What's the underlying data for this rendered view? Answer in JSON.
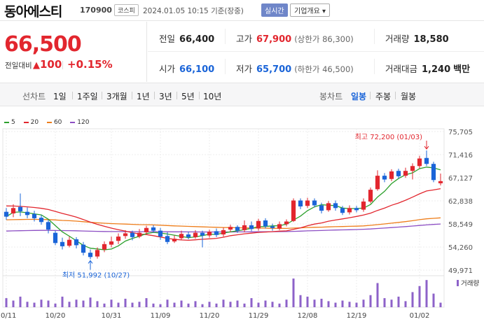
{
  "header": {
    "name": "동아에스티",
    "code": "170900",
    "market": "코스피",
    "time": "2024.01.05 10:15",
    "time_basis": "기준(장중)",
    "live_badge": "실시간",
    "info_label": "기업개요",
    "info_arrow": "▾"
  },
  "price": {
    "current": "66,500",
    "compare_label": "전일대비",
    "direction_symbol": "▲",
    "change": "100",
    "rate": "+0.15%"
  },
  "stats": {
    "prev_label": "전일",
    "prev_value": "66,400",
    "high_label": "고가",
    "high_value": "67,900",
    "upper_limit": "(상한가 86,300)",
    "volume_label": "거래량",
    "volume_value": "18,580",
    "open_label": "시가",
    "open_value": "66,100",
    "low_label": "저가",
    "low_value": "65,700",
    "lower_limit": "(하한가 46,500)",
    "amount_label": "거래대금",
    "amount_value": "1,240",
    "amount_unit": "백만"
  },
  "periods": {
    "label": "선차트",
    "options": [
      "1일",
      "1주일",
      "3개월",
      "1년",
      "3년",
      "5년",
      "10년"
    ],
    "candle_label": "봉차트",
    "candle_options": [
      "일봉",
      "주봉",
      "월봉"
    ],
    "candle_active": "일봉"
  },
  "chart_data": {
    "type": "candlestick",
    "legend": [
      {
        "name": "5",
        "color": "#2ca02c"
      },
      {
        "name": "20",
        "color": "#e2262e"
      },
      {
        "name": "60",
        "color": "#ee7d1a"
      },
      {
        "name": "120",
        "color": "#8d4fc4"
      }
    ],
    "y_ticks": [
      "75,705",
      "71,416",
      "67,127",
      "62,838",
      "58,549",
      "54,260",
      "49,971"
    ],
    "ylim": [
      49971,
      75705
    ],
    "x_ticks": [
      "10/11",
      "10/20",
      "10/31",
      "11/09",
      "11/20",
      "11/29",
      "12/08",
      "12/19",
      "01/02"
    ],
    "x_tick_index": [
      0,
      7,
      15,
      22,
      29,
      36,
      43,
      50,
      59
    ],
    "high_annotation": "최고 72,200 (01/03)",
    "high_index": 60,
    "high_value": 72200,
    "low_annotation": "최저 51,992 (10/27)",
    "low_index": 12,
    "low_value": 51992,
    "volume_label": "거래량",
    "candles": [
      {
        "o": 60800,
        "c": 59900,
        "h": 61500,
        "l": 59300
      },
      {
        "o": 60500,
        "c": 61500,
        "h": 62200,
        "l": 59800
      },
      {
        "o": 61700,
        "c": 60900,
        "h": 64200,
        "l": 60000
      },
      {
        "o": 60800,
        "c": 60200,
        "h": 61600,
        "l": 59600
      },
      {
        "o": 60400,
        "c": 59600,
        "h": 61000,
        "l": 59000
      },
      {
        "o": 59700,
        "c": 58900,
        "h": 60200,
        "l": 58400
      },
      {
        "o": 58900,
        "c": 57500,
        "h": 59300,
        "l": 56800
      },
      {
        "o": 56900,
        "c": 55000,
        "h": 57300,
        "l": 54600
      },
      {
        "o": 55200,
        "c": 54400,
        "h": 56000,
        "l": 53800
      },
      {
        "o": 54500,
        "c": 55600,
        "h": 56200,
        "l": 54200
      },
      {
        "o": 55700,
        "c": 54600,
        "h": 56100,
        "l": 54000
      },
      {
        "o": 54700,
        "c": 53200,
        "h": 55200,
        "l": 52700
      },
      {
        "o": 53200,
        "c": 52400,
        "h": 53800,
        "l": 51992
      },
      {
        "o": 52500,
        "c": 53700,
        "h": 54200,
        "l": 52100
      },
      {
        "o": 53800,
        "c": 54800,
        "h": 55300,
        "l": 53300
      },
      {
        "o": 54700,
        "c": 55300,
        "h": 56200,
        "l": 54200
      },
      {
        "o": 55400,
        "c": 56200,
        "h": 56800,
        "l": 54800
      },
      {
        "o": 56300,
        "c": 56800,
        "h": 57400,
        "l": 55800
      },
      {
        "o": 56900,
        "c": 56100,
        "h": 57300,
        "l": 55500
      },
      {
        "o": 56200,
        "c": 56900,
        "h": 57600,
        "l": 55900
      },
      {
        "o": 57000,
        "c": 57800,
        "h": 58200,
        "l": 56600
      },
      {
        "o": 57900,
        "c": 57300,
        "h": 58300,
        "l": 56900
      },
      {
        "o": 57300,
        "c": 56200,
        "h": 57800,
        "l": 55600
      },
      {
        "o": 56300,
        "c": 55200,
        "h": 57000,
        "l": 54800
      },
      {
        "o": 55300,
        "c": 55800,
        "h": 56400,
        "l": 55000
      },
      {
        "o": 55900,
        "c": 56700,
        "h": 57300,
        "l": 55500
      },
      {
        "o": 56600,
        "c": 56100,
        "h": 57100,
        "l": 55700
      },
      {
        "o": 56100,
        "c": 56900,
        "h": 57400,
        "l": 55800
      },
      {
        "o": 56900,
        "c": 56400,
        "h": 57300,
        "l": 54200
      },
      {
        "o": 56400,
        "c": 57100,
        "h": 57500,
        "l": 56000
      },
      {
        "o": 57200,
        "c": 56500,
        "h": 57700,
        "l": 56100
      },
      {
        "o": 56600,
        "c": 57400,
        "h": 57900,
        "l": 56200
      },
      {
        "o": 57500,
        "c": 58000,
        "h": 58400,
        "l": 57000
      },
      {
        "o": 58000,
        "c": 57300,
        "h": 58300,
        "l": 56900
      },
      {
        "o": 57400,
        "c": 58300,
        "h": 59200,
        "l": 57000
      },
      {
        "o": 58300,
        "c": 57600,
        "h": 59000,
        "l": 57200
      },
      {
        "o": 57700,
        "c": 59100,
        "h": 59500,
        "l": 57300
      },
      {
        "o": 59200,
        "c": 58100,
        "h": 59600,
        "l": 57700
      },
      {
        "o": 58100,
        "c": 57800,
        "h": 58600,
        "l": 57300
      },
      {
        "o": 57700,
        "c": 58500,
        "h": 59000,
        "l": 57400
      },
      {
        "o": 58500,
        "c": 59000,
        "h": 59400,
        "l": 58100
      },
      {
        "o": 59100,
        "c": 62900,
        "h": 63300,
        "l": 58900
      },
      {
        "o": 62900,
        "c": 61800,
        "h": 63300,
        "l": 61300
      },
      {
        "o": 61900,
        "c": 62900,
        "h": 63400,
        "l": 61500
      },
      {
        "o": 62900,
        "c": 62000,
        "h": 63300,
        "l": 61600
      },
      {
        "o": 62000,
        "c": 61000,
        "h": 62500,
        "l": 60500
      },
      {
        "o": 61100,
        "c": 62400,
        "h": 62800,
        "l": 60800
      },
      {
        "o": 62400,
        "c": 61500,
        "h": 62900,
        "l": 61000
      },
      {
        "o": 61500,
        "c": 60600,
        "h": 61900,
        "l": 60200
      },
      {
        "o": 60700,
        "c": 61500,
        "h": 62000,
        "l": 60300
      },
      {
        "o": 61500,
        "c": 61100,
        "h": 61900,
        "l": 60700
      },
      {
        "o": 61200,
        "c": 62700,
        "h": 63300,
        "l": 60800
      },
      {
        "o": 62700,
        "c": 64900,
        "h": 65300,
        "l": 62400
      },
      {
        "o": 65000,
        "c": 67500,
        "h": 68500,
        "l": 64700
      },
      {
        "o": 67500,
        "c": 66800,
        "h": 68000,
        "l": 66300
      },
      {
        "o": 66900,
        "c": 68300,
        "h": 68700,
        "l": 66500
      },
      {
        "o": 68400,
        "c": 67400,
        "h": 68800,
        "l": 67000
      },
      {
        "o": 67500,
        "c": 68400,
        "h": 69000,
        "l": 67100
      },
      {
        "o": 68400,
        "c": 69300,
        "h": 69800,
        "l": 66800
      },
      {
        "o": 69300,
        "c": 70700,
        "h": 71200,
        "l": 68900
      },
      {
        "o": 70800,
        "c": 69700,
        "h": 72200,
        "l": 69300
      },
      {
        "o": 69700,
        "c": 66700,
        "h": 70100,
        "l": 66300
      },
      {
        "o": 66100,
        "c": 66500,
        "h": 67900,
        "l": 65700
      }
    ],
    "volumes": [
      30,
      22,
      35,
      18,
      15,
      25,
      22,
      12,
      35,
      18,
      25,
      22,
      32,
      20,
      12,
      25,
      15,
      28,
      15,
      18,
      30,
      12,
      10,
      25,
      15,
      22,
      12,
      20,
      10,
      18,
      12,
      25,
      18,
      22,
      12,
      30,
      15,
      22,
      18,
      12,
      25,
      95,
      40,
      35,
      25,
      28,
      20,
      15,
      22,
      18,
      15,
      25,
      40,
      80,
      30,
      25,
      35,
      20,
      50,
      70,
      90,
      45,
      15
    ]
  }
}
